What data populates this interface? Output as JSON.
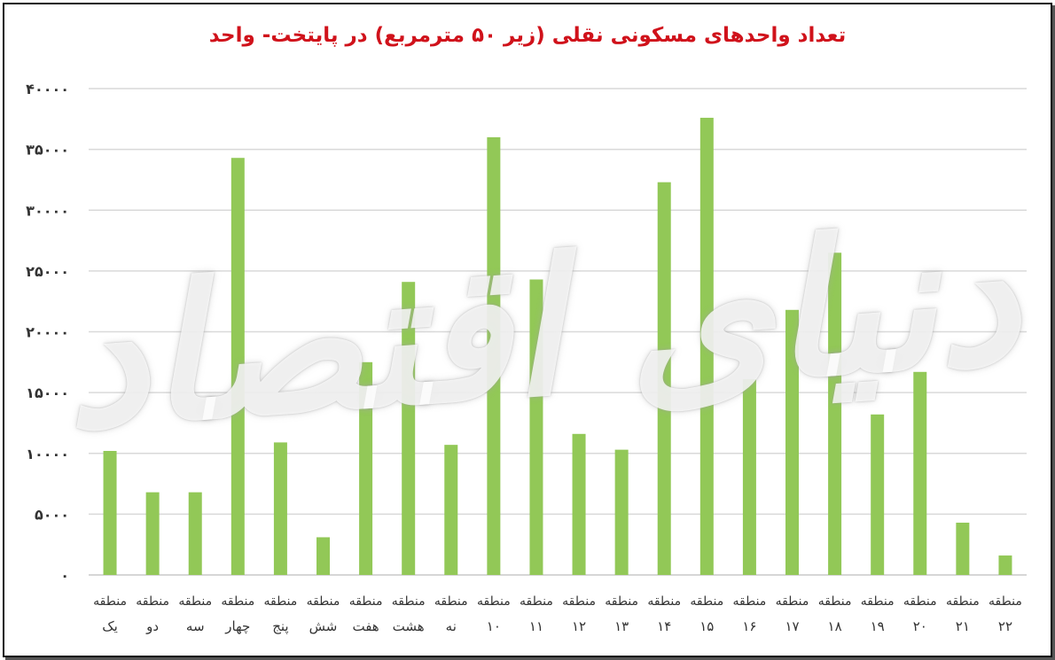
{
  "chart_data": {
    "type": "bar",
    "title": "تعداد واحدهای مسکونی نقلی (زیر ۵۰ مترمربع) در پایتخت- واحد",
    "categories": [
      "منطقه یک",
      "منطقه دو",
      "منطقه سه",
      "منطقه چهار",
      "منطقه پنج",
      "منطقه شش",
      "منطقه هفت",
      "منطقه هشت",
      "منطقه نه",
      "منطقه ۱۰",
      "منطقه ۱۱",
      "منطقه ۱۲",
      "منطقه ۱۳",
      "منطقه ۱۴",
      "منطقه ۱۵",
      "منطقه ۱۶",
      "منطقه ۱۷",
      "منطقه ۱۸",
      "منطقه ۱۹",
      "منطقه ۲۰",
      "منطقه ۲۱",
      "منطقه ۲۲"
    ],
    "values": [
      10200,
      6800,
      6800,
      34300,
      10900,
      3100,
      17500,
      24100,
      10700,
      36000,
      24300,
      11600,
      10300,
      32300,
      37600,
      16100,
      21800,
      26500,
      13200,
      16700,
      4300,
      1600
    ],
    "yticks": [
      0,
      5000,
      10000,
      15000,
      20000,
      25000,
      30000,
      35000,
      40000
    ],
    "ytick_labels": [
      "۰",
      "۵۰۰۰",
      "۱۰۰۰۰",
      "۱۵۰۰۰",
      "۲۰۰۰۰",
      "۲۵۰۰۰",
      "۳۰۰۰۰",
      "۳۵۰۰۰",
      "۴۰۰۰۰"
    ],
    "ylim": [
      0,
      40000
    ],
    "grid": true,
    "legend": "none",
    "bar_color": "#92c857",
    "title_color": "#d0121b"
  },
  "watermark": "دنیای اقتصاد"
}
